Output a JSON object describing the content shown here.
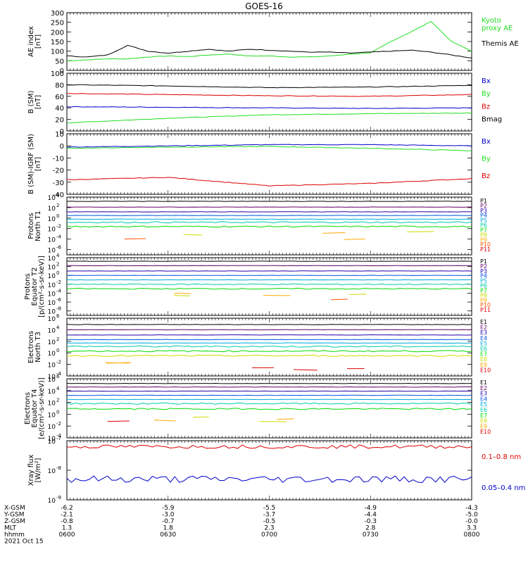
{
  "title": "GOES-16",
  "date_label": "2021 Oct 15",
  "colors": {
    "black": "#000000",
    "red": "#dd0000",
    "green": "#22dd22",
    "blue": "#0000cc",
    "p_colors": [
      "#000000",
      "#660066",
      "#2200aa",
      "#0055dd",
      "#00aadd",
      "#00ccaa",
      "#00dd00",
      "#ccdd00",
      "#ffaa00",
      "#ff5500",
      "#dd0000"
    ],
    "e_colors": [
      "#000000",
      "#660066",
      "#2200aa",
      "#0055dd",
      "#00aadd",
      "#00ccaa",
      "#00dd00",
      "#ccdd00",
      "#ffaa00",
      "#dd0000"
    ]
  },
  "footer": {
    "row_labels": [
      "X-GSM",
      "Y-GSM",
      "Z-GSM",
      "MLT",
      "hhmm"
    ],
    "columns": [
      {
        "vals": [
          "-6.2",
          "-2.1",
          "-0.8",
          "1.3",
          "0600"
        ]
      },
      {
        "vals": [
          "-5.9",
          "-3.0",
          "-0.7",
          "1.8",
          "0630"
        ]
      },
      {
        "vals": [
          "-5.5",
          "-3.7",
          "-0.5",
          "2.3",
          "0700"
        ]
      },
      {
        "vals": [
          "-4.9",
          "-4.4",
          "-0.3",
          "2.8",
          "0730"
        ]
      },
      {
        "vals": [
          "-4.3",
          "-5.0",
          "-0.0",
          "3.3",
          "0800"
        ]
      }
    ]
  },
  "chart_data": [
    {
      "id": "ae",
      "type": "line",
      "ylabel": [
        "AE index",
        "[nT]"
      ],
      "ylim": [
        0,
        300
      ],
      "yticks": [
        "0",
        "50",
        "100",
        "150",
        "200",
        "250",
        "300"
      ],
      "x": [
        "06:00",
        "06:06",
        "06:12",
        "06:18",
        "06:24",
        "06:30",
        "06:36",
        "06:42",
        "06:48",
        "06:54",
        "07:00",
        "07:06",
        "07:12",
        "07:18",
        "07:24",
        "07:30",
        "07:36",
        "07:42",
        "07:48",
        "07:54",
        "08:00"
      ],
      "series": [
        {
          "name": "Kyoto proxy AE",
          "color": "green",
          "values": [
            50,
            55,
            60,
            60,
            70,
            75,
            72,
            80,
            85,
            75,
            75,
            70,
            70,
            75,
            85,
            90,
            150,
            200,
            255,
            150,
            100
          ]
        },
        {
          "name": "Themis AE",
          "color": "black",
          "values": [
            75,
            70,
            80,
            130,
            100,
            90,
            100,
            110,
            100,
            110,
            105,
            100,
            95,
            95,
            90,
            95,
            100,
            105,
            95,
            80,
            65
          ]
        }
      ],
      "legend": [
        {
          "text": "Kyoto\nproxy AE",
          "color": "green"
        },
        {
          "text": "Themis AE",
          "color": "black"
        }
      ]
    },
    {
      "id": "bsm",
      "type": "line",
      "ylabel": [
        "B (SM)",
        "[nT]"
      ],
      "ylim": [
        0,
        100
      ],
      "yticks": [
        "0",
        "20",
        "40",
        "60",
        "80",
        "100"
      ],
      "x": [
        "06:00",
        "06:30",
        "07:00",
        "07:30",
        "08:00"
      ],
      "series": [
        {
          "name": "Bx",
          "color": "blue",
          "values": [
            42,
            41,
            40,
            39,
            40
          ]
        },
        {
          "name": "By",
          "color": "green",
          "values": [
            14,
            22,
            28,
            30,
            31
          ]
        },
        {
          "name": "Bz",
          "color": "red",
          "values": [
            65,
            63,
            61,
            60,
            63
          ]
        },
        {
          "name": "Bmag",
          "color": "black",
          "values": [
            80,
            78,
            75,
            76,
            79
          ]
        }
      ],
      "legend": [
        {
          "text": "Bx",
          "color": "blue"
        },
        {
          "text": "By",
          "color": "green"
        },
        {
          "text": "Bz",
          "color": "red"
        },
        {
          "text": "Bmag",
          "color": "black"
        }
      ]
    },
    {
      "id": "bigrf",
      "type": "line",
      "ylabel": [
        "B (SM)-IGRF (SM)",
        "[nT]"
      ],
      "ylim": [
        -40,
        10
      ],
      "yticks": [
        "-40",
        "-30",
        "-20",
        "-10",
        "0",
        "10"
      ],
      "x": [
        "06:00",
        "06:30",
        "07:00",
        "07:30",
        "08:00"
      ],
      "series": [
        {
          "name": "Bx",
          "color": "blue",
          "values": [
            -1,
            0,
            1,
            1,
            0
          ]
        },
        {
          "name": "By",
          "color": "green",
          "values": [
            -2,
            -1,
            -0.5,
            -2,
            -4
          ]
        },
        {
          "name": "Bz",
          "color": "red",
          "values": [
            -28,
            -26,
            -33,
            -31,
            -27
          ]
        }
      ],
      "legend": [
        {
          "text": "Bx",
          "color": "blue"
        },
        {
          "text": "By",
          "color": "green"
        },
        {
          "text": "Bz",
          "color": "red"
        }
      ]
    },
    {
      "id": "pt1",
      "type": "line",
      "log": true,
      "ylabel": [
        "Protons",
        "North T1"
      ],
      "ylim_exp": [
        -7,
        4
      ],
      "tick_exps": [
        4,
        2,
        0,
        -2,
        -4,
        -6
      ],
      "series_levels": [
        3.2,
        2.1,
        1.2,
        0.5,
        -0.2,
        -0.8,
        -1.6
      ],
      "legend_labels": [
        "P1",
        "P2",
        "P3",
        "P4",
        "P5",
        "P6",
        "P7",
        "P8",
        "P9",
        "P10",
        "P11"
      ]
    },
    {
      "id": "pt2",
      "type": "line",
      "log": true,
      "ylabel": [
        "Protons",
        "Equator T2",
        "[p/(cm²-s-sr-keV)]"
      ],
      "ylim_exp": [
        -9,
        4
      ],
      "tick_exps": [
        4,
        2,
        0,
        -2,
        -4,
        -6,
        -8
      ],
      "series_levels": [
        3.2,
        2.2,
        1.0,
        0.0,
        -1.0,
        -2.0,
        -3.0
      ],
      "legend_labels": [
        "P1",
        "P2",
        "P3",
        "P4",
        "P5",
        "P6",
        "P7",
        "P8",
        "P9",
        "P10",
        "P11"
      ]
    },
    {
      "id": "et3",
      "type": "line",
      "log": true,
      "ylabel": [
        "Electrons",
        "North T3"
      ],
      "ylim_exp": [
        -4,
        6
      ],
      "tick_exps": [
        6,
        4,
        2,
        0,
        -2,
        -4
      ],
      "series_levels": [
        4.9,
        4.0,
        3.1,
        2.3,
        1.7,
        1.1,
        0.3,
        -0.5
      ],
      "legend_labels": [
        "E1",
        "E2",
        "E3",
        "E4",
        "E5",
        "E6",
        "E7",
        "E8",
        "E9",
        "E10"
      ]
    },
    {
      "id": "et4",
      "type": "line",
      "log": true,
      "ylabel": [
        "Electrons",
        "Equator T4",
        "[e/(cm²-s-sr-keV)]"
      ],
      "ylim_exp": [
        -4,
        6
      ],
      "tick_exps": [
        6,
        4,
        2,
        0,
        -2,
        -4
      ],
      "series_levels": [
        5.2,
        4.6,
        3.9,
        3.2,
        2.5,
        1.8,
        0.9
      ],
      "legend_labels": [
        "E1",
        "E2",
        "E3",
        "E4",
        "E5",
        "E6",
        "E7",
        "E8",
        "E9",
        "E10"
      ]
    },
    {
      "id": "xray",
      "type": "line",
      "log": true,
      "ylabel": [
        "Xray flux",
        "[W/m²]"
      ],
      "ylim_exp": [
        -9,
        -7
      ],
      "tick_exps": [
        -7,
        -8,
        -9
      ],
      "series_levels": [
        -7.2,
        -8.3
      ],
      "legend": [
        {
          "text": "0.1–0.8 nm",
          "color": "red"
        },
        {
          "text": "0.05–0.4 nm",
          "color": "blue"
        }
      ]
    }
  ]
}
